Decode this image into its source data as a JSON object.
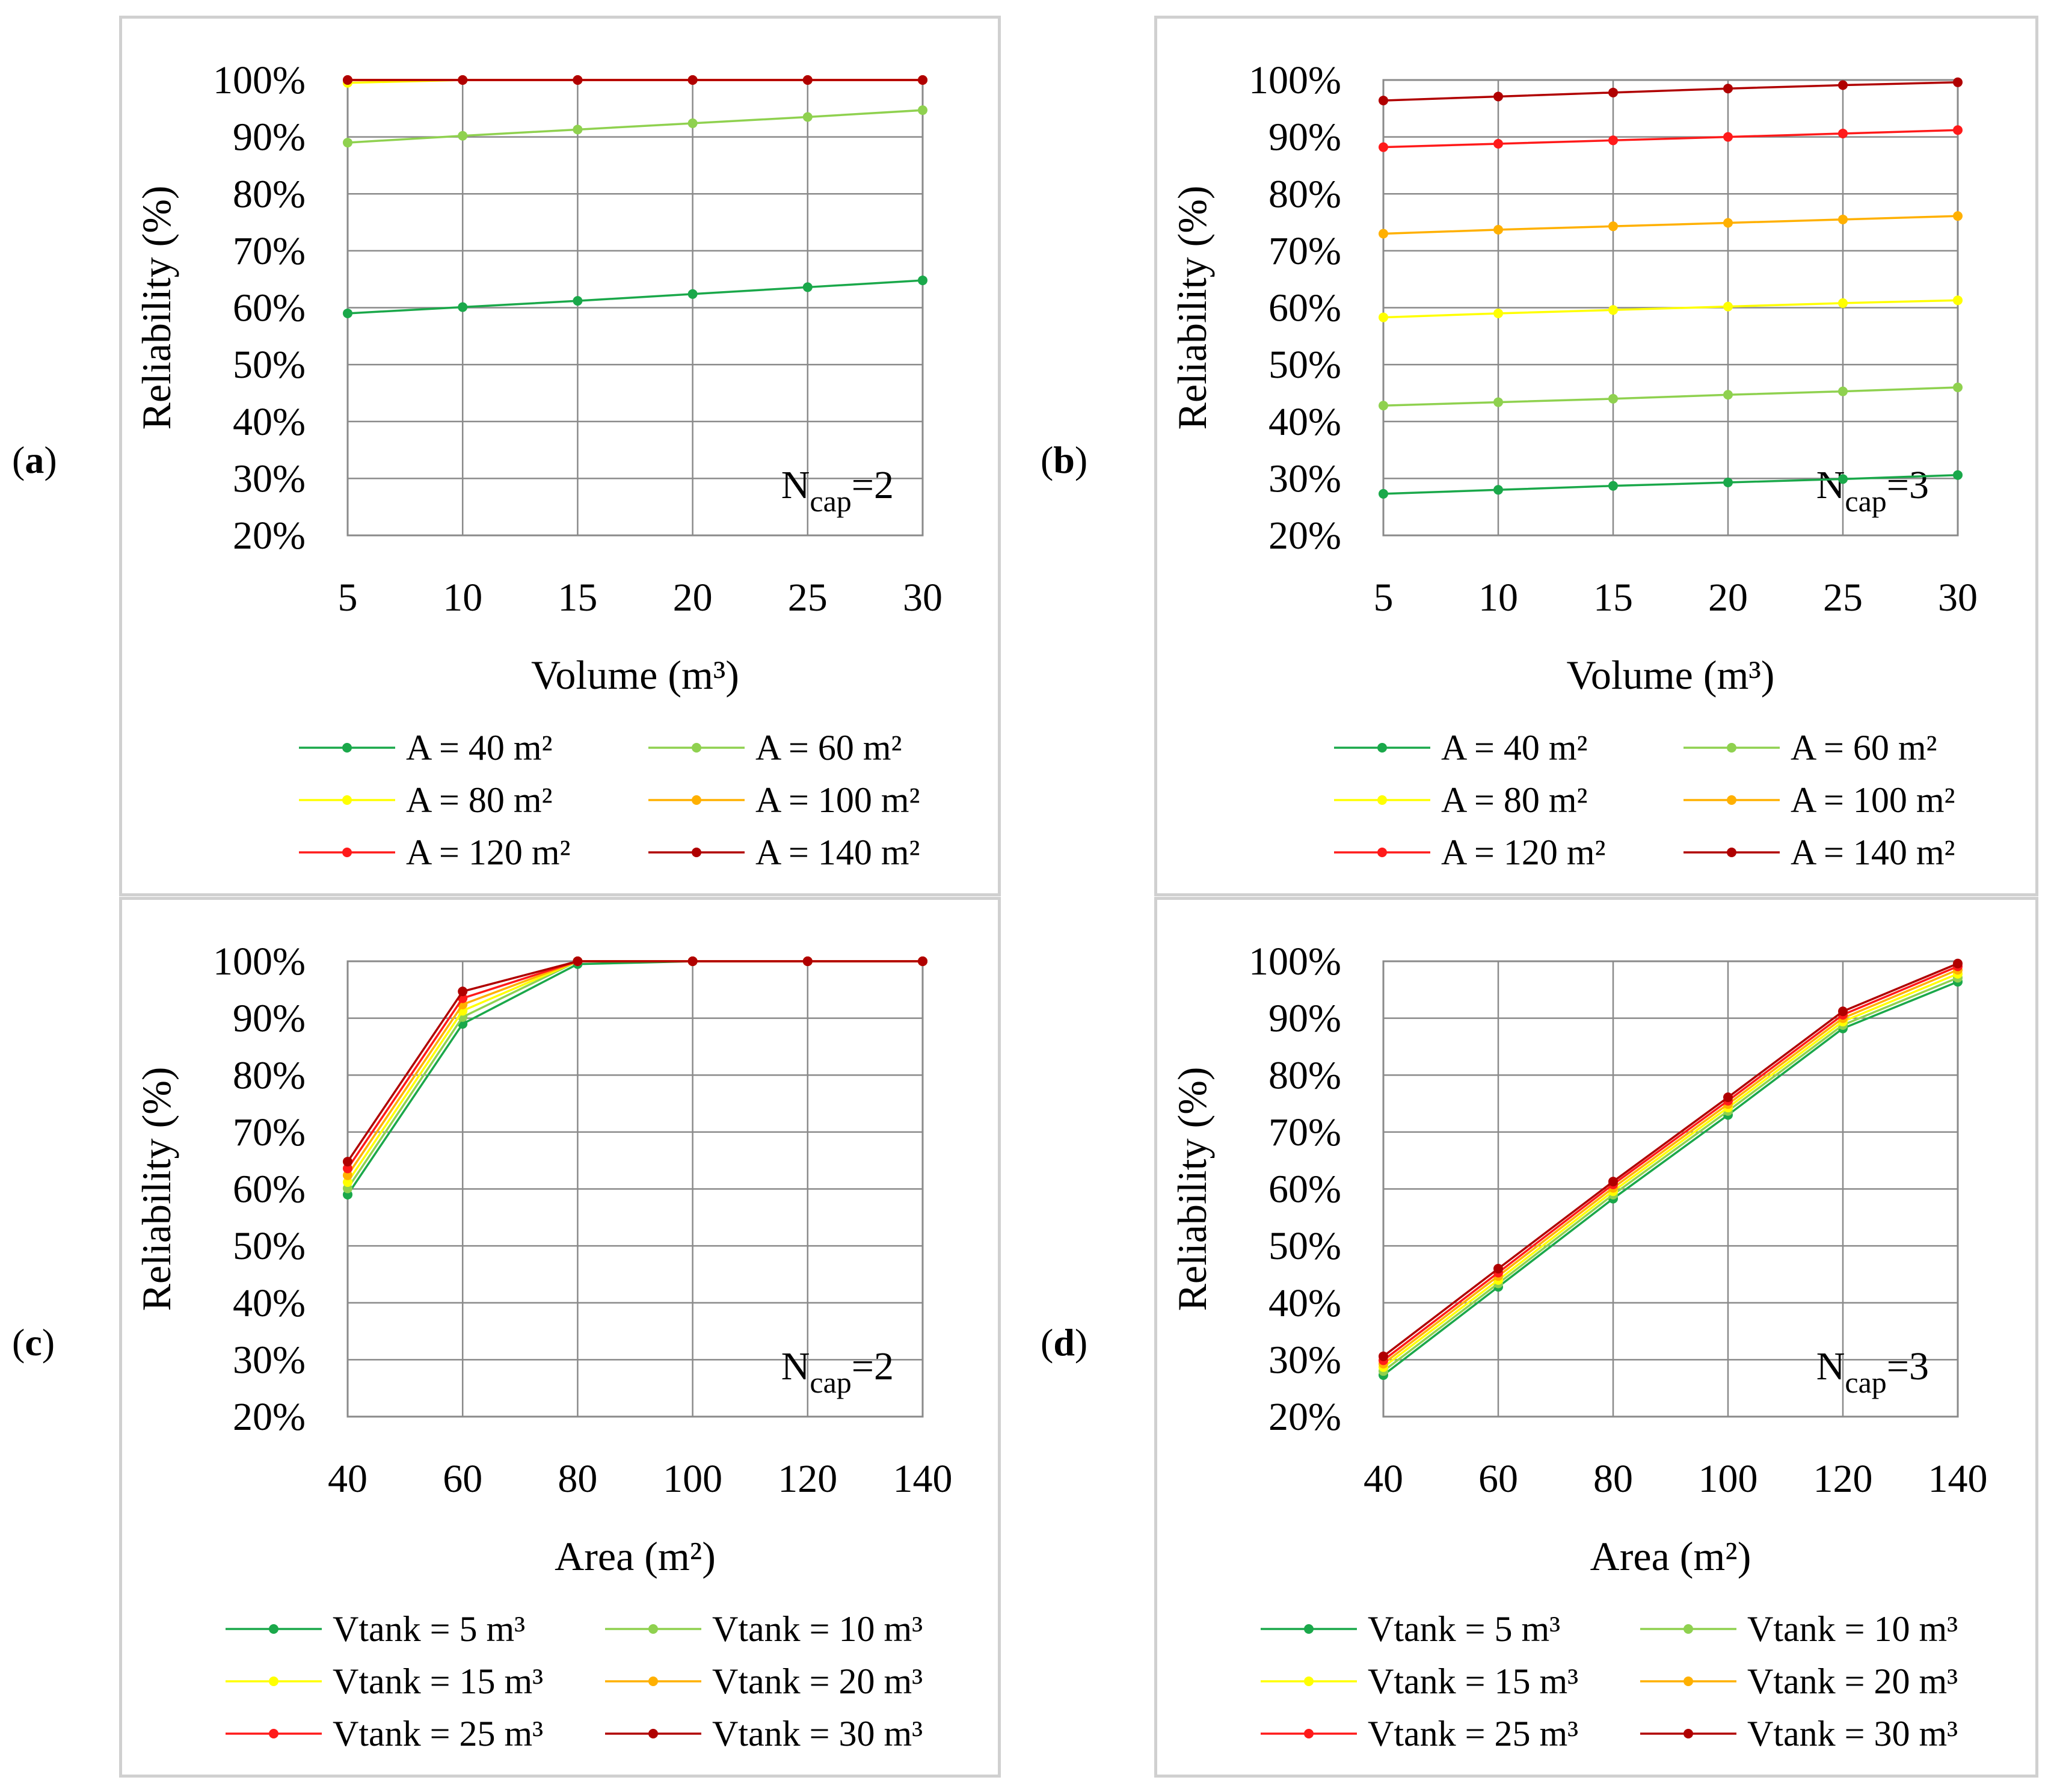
{
  "figure": {
    "panel_labels": [
      "a",
      "b",
      "c",
      "d"
    ]
  },
  "chart_data": [
    {
      "type": "line",
      "id": "a",
      "panel_label": "a",
      "annotation": {
        "base": "N",
        "sub": "cap",
        "suffix": "=2"
      },
      "xlabel": "Volume (m³)",
      "ylabel": "Reliability (%)",
      "x": [
        5,
        10,
        15,
        20,
        25,
        30
      ],
      "x_ticks": [
        "5",
        "10",
        "15",
        "20",
        "25",
        "30"
      ],
      "ylim": [
        20,
        100
      ],
      "y_ticks": [
        "20%",
        "30%",
        "40%",
        "50%",
        "60%",
        "70%",
        "80%",
        "90%",
        "100%"
      ],
      "legend_position": "bottom",
      "series": [
        {
          "name": "A = 40 m²",
          "color": "#1aa84a",
          "values": [
            59,
            60.1,
            61.2,
            62.4,
            63.6,
            64.8
          ]
        },
        {
          "name": "A = 60 m²",
          "color": "#8fd14f",
          "values": [
            89,
            90.2,
            91.3,
            92.4,
            93.5,
            94.7
          ]
        },
        {
          "name": "A = 80 m²",
          "color": "#ffff00",
          "values": [
            99.5,
            100,
            100,
            100,
            100,
            100
          ]
        },
        {
          "name": "A = 100 m²",
          "color": "#ffb000",
          "values": [
            100,
            100,
            100,
            100,
            100,
            100
          ]
        },
        {
          "name": "A = 120 m²",
          "color": "#ff1a1a",
          "values": [
            100,
            100,
            100,
            100,
            100,
            100
          ]
        },
        {
          "name": "A = 140 m²",
          "color": "#b00000",
          "values": [
            100,
            100,
            100,
            100,
            100,
            100
          ]
        }
      ]
    },
    {
      "type": "line",
      "id": "b",
      "panel_label": "b",
      "annotation": {
        "base": "N",
        "sub": "cap",
        "suffix": "=3"
      },
      "xlabel": "Volume (m³)",
      "ylabel": "Reliability (%)",
      "x": [
        5,
        10,
        15,
        20,
        25,
        30
      ],
      "x_ticks": [
        "5",
        "10",
        "15",
        "20",
        "25",
        "30"
      ],
      "ylim": [
        20,
        100
      ],
      "y_ticks": [
        "20%",
        "30%",
        "40%",
        "50%",
        "60%",
        "70%",
        "80%",
        "90%",
        "100%"
      ],
      "legend_position": "bottom",
      "series": [
        {
          "name": "A = 40 m²",
          "color": "#1aa84a",
          "values": [
            27.3,
            28,
            28.7,
            29.3,
            29.9,
            30.6
          ]
        },
        {
          "name": "A = 60 m²",
          "color": "#8fd14f",
          "values": [
            42.8,
            43.4,
            44,
            44.7,
            45.3,
            46
          ]
        },
        {
          "name": "A = 80 m²",
          "color": "#ffff00",
          "values": [
            58.3,
            59,
            59.6,
            60.2,
            60.8,
            61.3
          ]
        },
        {
          "name": "A = 100 m²",
          "color": "#ffb000",
          "values": [
            73,
            73.7,
            74.3,
            74.9,
            75.5,
            76.1
          ]
        },
        {
          "name": "A = 120 m²",
          "color": "#ff1a1a",
          "values": [
            88.2,
            88.8,
            89.4,
            90,
            90.6,
            91.2
          ]
        },
        {
          "name": "A = 140 m²",
          "color": "#b00000",
          "values": [
            96.4,
            97.1,
            97.8,
            98.5,
            99.1,
            99.6
          ]
        }
      ]
    },
    {
      "type": "line",
      "id": "c",
      "panel_label": "c",
      "annotation": {
        "base": "N",
        "sub": "cap",
        "suffix": "=2"
      },
      "xlabel": "Area (m²)",
      "ylabel": "Reliability (%)",
      "x": [
        40,
        60,
        80,
        100,
        120,
        140
      ],
      "x_ticks": [
        "40",
        "60",
        "80",
        "100",
        "120",
        "140"
      ],
      "ylim": [
        20,
        100
      ],
      "y_ticks": [
        "20%",
        "30%",
        "40%",
        "50%",
        "60%",
        "70%",
        "80%",
        "90%",
        "100%"
      ],
      "legend_position": "bottom",
      "series": [
        {
          "name": "Vtank = 5 m³",
          "color": "#1aa84a",
          "values": [
            59,
            89,
            99.5,
            100,
            100,
            100
          ]
        },
        {
          "name": "Vtank = 10 m³",
          "color": "#8fd14f",
          "values": [
            60.1,
            90.2,
            100,
            100,
            100,
            100
          ]
        },
        {
          "name": "Vtank = 15 m³",
          "color": "#ffff00",
          "values": [
            61.2,
            91.3,
            100,
            100,
            100,
            100
          ]
        },
        {
          "name": "Vtank = 20 m³",
          "color": "#ffb000",
          "values": [
            62.4,
            92.4,
            100,
            100,
            100,
            100
          ]
        },
        {
          "name": "Vtank = 25 m³",
          "color": "#ff1a1a",
          "values": [
            63.6,
            93.5,
            100,
            100,
            100,
            100
          ]
        },
        {
          "name": "Vtank = 30 m³",
          "color": "#b00000",
          "values": [
            64.8,
            94.7,
            100,
            100,
            100,
            100
          ]
        }
      ]
    },
    {
      "type": "line",
      "id": "d",
      "panel_label": "d",
      "annotation": {
        "base": "N",
        "sub": "cap",
        "suffix": "=3"
      },
      "xlabel": "Area (m²)",
      "ylabel": "Reliability (%)",
      "x": [
        40,
        60,
        80,
        100,
        120,
        140
      ],
      "x_ticks": [
        "40",
        "60",
        "80",
        "100",
        "120",
        "140"
      ],
      "ylim": [
        20,
        100
      ],
      "y_ticks": [
        "20%",
        "30%",
        "40%",
        "50%",
        "60%",
        "70%",
        "80%",
        "90%",
        "100%"
      ],
      "legend_position": "bottom",
      "series": [
        {
          "name": "Vtank = 5 m³",
          "color": "#1aa84a",
          "values": [
            27.3,
            42.8,
            58.3,
            73,
            88.2,
            96.4
          ]
        },
        {
          "name": "Vtank = 10 m³",
          "color": "#8fd14f",
          "values": [
            28,
            43.4,
            59,
            73.7,
            88.8,
            97.1
          ]
        },
        {
          "name": "Vtank = 15 m³",
          "color": "#ffff00",
          "values": [
            28.7,
            44,
            59.6,
            74.3,
            89.4,
            97.8
          ]
        },
        {
          "name": "Vtank = 20 m³",
          "color": "#ffb000",
          "values": [
            29.3,
            44.7,
            60.2,
            74.9,
            90,
            98.5
          ]
        },
        {
          "name": "Vtank = 25 m³",
          "color": "#ff1a1a",
          "values": [
            29.9,
            45.3,
            60.8,
            75.5,
            90.6,
            99.1
          ]
        },
        {
          "name": "Vtank = 30 m³",
          "color": "#b00000",
          "values": [
            30.6,
            46,
            61.3,
            76.1,
            91.2,
            99.6
          ]
        }
      ]
    }
  ]
}
